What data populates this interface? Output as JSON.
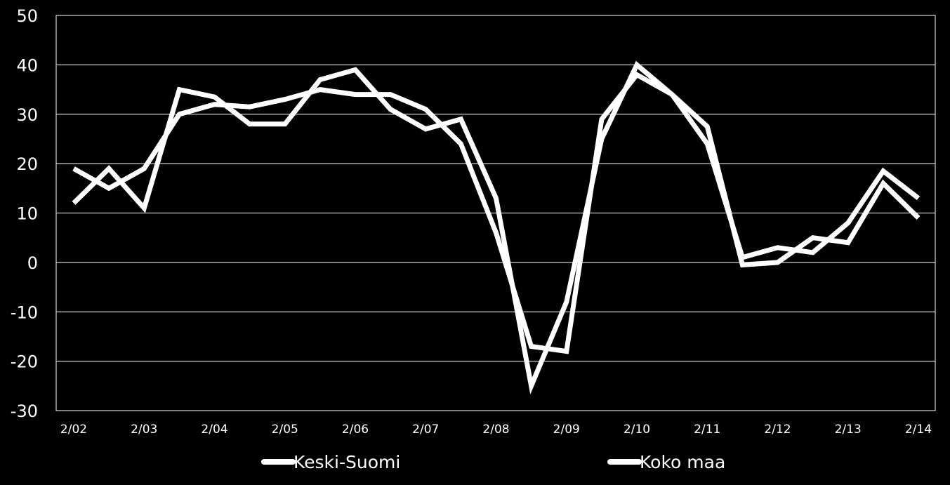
{
  "colors": {
    "background": "#000000",
    "line": "#ffffff",
    "grid": "#ffffff"
  },
  "chart_data": {
    "type": "line",
    "ylim": [
      -30,
      50
    ],
    "yticks": [
      50,
      40,
      30,
      20,
      10,
      0,
      -10,
      -20,
      -30
    ],
    "ytick_labels": [
      "50",
      "40",
      "30",
      "20",
      "10",
      "0",
      "-10",
      "-20",
      "-30"
    ],
    "xtick_labels": [
      "2/02",
      "2/03",
      "2/04",
      "2/05",
      "2/06",
      "2/07",
      "2/08",
      "2/09",
      "2/10",
      "2/11",
      "2/12",
      "2/13",
      "2/14"
    ],
    "grid": true,
    "legend_position": "bottom",
    "n_points": 25,
    "series": [
      {
        "name": "Keski-Suomi",
        "values": [
          12,
          19,
          11,
          35,
          33.5,
          28,
          28,
          37,
          39,
          31,
          27,
          29,
          13,
          -25,
          -8,
          25,
          40,
          34,
          24,
          1,
          3,
          2,
          8,
          18.5,
          13
        ]
      },
      {
        "name": "Koko maa",
        "values": [
          19,
          15,
          19,
          30,
          32,
          31.5,
          33,
          35,
          34,
          34,
          31,
          24,
          6,
          -17,
          -18,
          29,
          38,
          34,
          27.5,
          -0.5,
          0,
          5,
          4,
          16,
          9
        ]
      }
    ]
  }
}
